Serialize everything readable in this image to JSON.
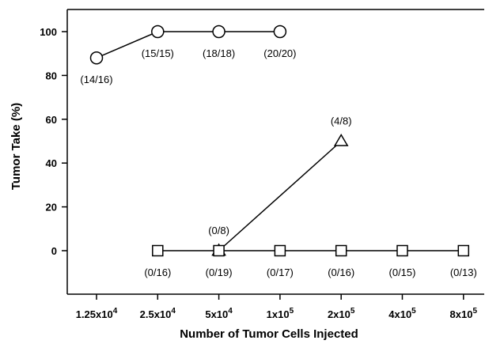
{
  "chart_data": {
    "type": "line",
    "xlabel": "Number of Tumor Cells Injected",
    "ylabel": "Tumor Take (%)",
    "ylim": [
      -18,
      110
    ],
    "yticks": [
      0,
      20,
      40,
      60,
      80,
      100
    ],
    "categories": [
      {
        "base": "1.25x10",
        "exp": "4"
      },
      {
        "base": "2.5x10",
        "exp": "4"
      },
      {
        "base": "5x10",
        "exp": "4"
      },
      {
        "base": "1x10",
        "exp": "5"
      },
      {
        "base": "2x10",
        "exp": "5"
      },
      {
        "base": "4x10",
        "exp": "5"
      },
      {
        "base": "8x10",
        "exp": "5"
      }
    ],
    "grid": false,
    "series": [
      {
        "marker": "circle",
        "points": [
          {
            "x": 0,
            "y": 88,
            "label": "(14/16)",
            "label_pos": "below"
          },
          {
            "x": 1,
            "y": 100,
            "label": "(15/15)",
            "label_pos": "below"
          },
          {
            "x": 2,
            "y": 100,
            "label": "(18/18)",
            "label_pos": "below"
          },
          {
            "x": 3,
            "y": 100,
            "label": "(20/20)",
            "label_pos": "below"
          }
        ]
      },
      {
        "marker": "triangle",
        "points": [
          {
            "x": 2,
            "y": 0,
            "label": "(0/8)",
            "label_pos": "above"
          },
          {
            "x": 4,
            "y": 50,
            "label": "(4/8)",
            "label_pos": "above"
          }
        ]
      },
      {
        "marker": "square",
        "points": [
          {
            "x": 1,
            "y": 0,
            "label": "(0/16)",
            "label_pos": "below"
          },
          {
            "x": 2,
            "y": 0,
            "label": "(0/19)",
            "label_pos": "below"
          },
          {
            "x": 3,
            "y": 0,
            "label": "(0/17)",
            "label_pos": "below"
          },
          {
            "x": 4,
            "y": 0,
            "label": "(0/16)",
            "label_pos": "below"
          },
          {
            "x": 5,
            "y": 0,
            "label": "(0/15)",
            "label_pos": "below"
          },
          {
            "x": 6,
            "y": 0,
            "label": "(0/13)",
            "label_pos": "below"
          }
        ]
      }
    ]
  }
}
